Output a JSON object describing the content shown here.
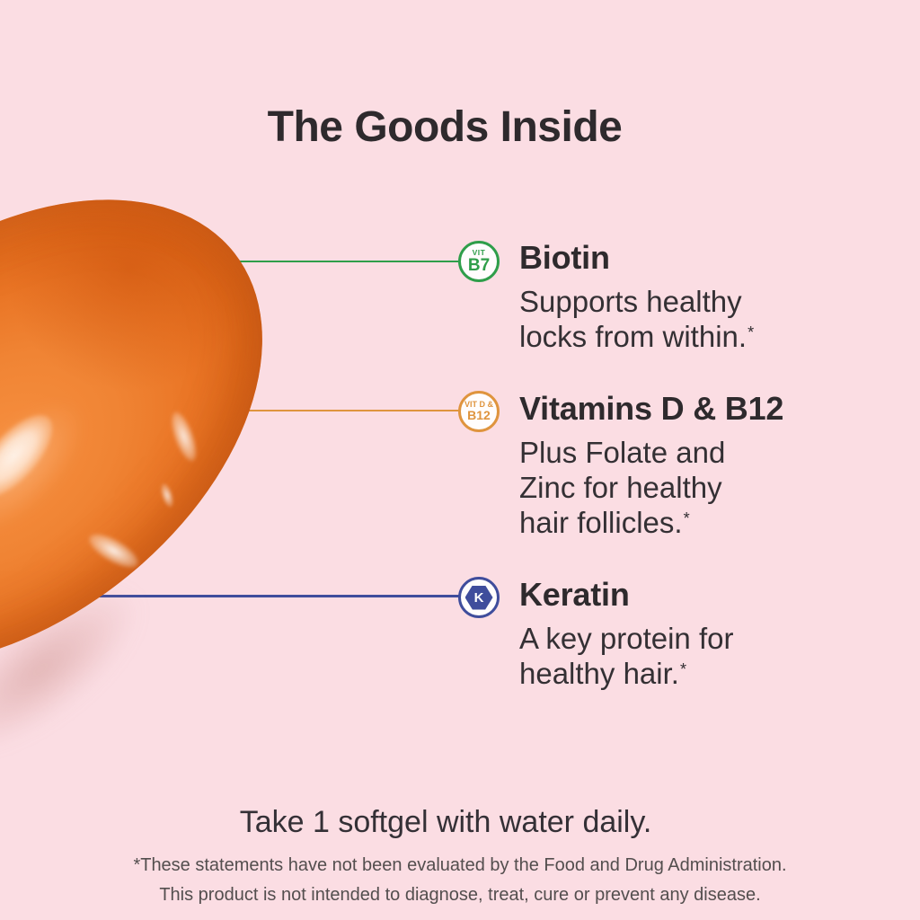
{
  "page": {
    "title": "The Goods Inside",
    "background_color": "#FBDDE3",
    "heading_text_color": "#2E2A2D",
    "body_text_color": "#343034"
  },
  "softgel": {
    "description": "orange softgel capsule",
    "base_color": "#EE7B28",
    "edge_color": "#C85A12",
    "highlight_color": "#FFFFFF"
  },
  "callouts": [
    {
      "heading": "Biotin",
      "body_lines": [
        "Supports healthy",
        "locks from within.*"
      ],
      "badge": {
        "shape": "circle",
        "top_text": "VIT",
        "main_text": "B7"
      },
      "color": "#2F9E4A"
    },
    {
      "heading": "Vitamins D & B12",
      "body_lines": [
        "Plus Folate and",
        "Zinc for healthy",
        "hair follicles.*"
      ],
      "badge": {
        "shape": "circle",
        "top_text": "VIT D &",
        "main_text": "B12"
      },
      "color": "#DF943E"
    },
    {
      "heading": "Keratin",
      "body_lines": [
        "A key protein for",
        "healthy hair.*"
      ],
      "badge": {
        "shape": "hexagon",
        "main_text": "K"
      },
      "color": "#3F4D9C"
    }
  ],
  "dosage_text": "Take 1 softgel with water daily.",
  "disclaimer_lines": [
    "*These statements have not been evaluated by the Food and Drug Administration.",
    "This product is not intended to diagnose, treat, cure or prevent any disease."
  ]
}
